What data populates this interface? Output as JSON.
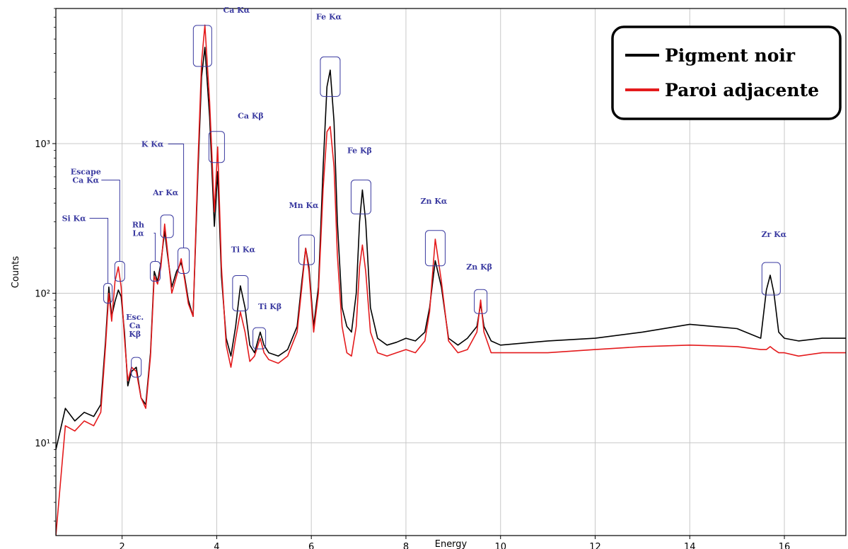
{
  "chart_data": {
    "type": "line",
    "title": "",
    "xlabel": "Energy",
    "ylabel": "Counts",
    "xlim": [
      0.6,
      17.3
    ],
    "ylim": [
      2.4,
      8000
    ],
    "y_scale": "log",
    "grid": true,
    "legend_position": "top-right",
    "x_ticks": [
      {
        "value": 2,
        "label": "2"
      },
      {
        "value": 4,
        "label": "4"
      },
      {
        "value": 6,
        "label": "6"
      },
      {
        "value": 8,
        "label": "8"
      },
      {
        "value": 10,
        "label": "10"
      },
      {
        "value": 12,
        "label": "12"
      },
      {
        "value": 14,
        "label": "14"
      },
      {
        "value": 16,
        "label": "16"
      }
    ],
    "y_ticks": [
      {
        "value": 10,
        "label": "10¹"
      },
      {
        "value": 100,
        "label": "10²"
      },
      {
        "value": 1000,
        "label": "10³"
      }
    ],
    "series": [
      {
        "name": "Pigment noir",
        "color": "#000000",
        "x": [
          0.6,
          0.8,
          1.0,
          1.2,
          1.4,
          1.55,
          1.65,
          1.72,
          1.78,
          1.85,
          1.92,
          1.98,
          2.05,
          2.12,
          2.2,
          2.3,
          2.4,
          2.5,
          2.6,
          2.68,
          2.75,
          2.82,
          2.9,
          2.96,
          3.05,
          3.15,
          3.25,
          3.32,
          3.4,
          3.5,
          3.6,
          3.68,
          3.75,
          3.85,
          3.95,
          4.02,
          4.1,
          4.2,
          4.3,
          4.4,
          4.5,
          4.6,
          4.7,
          4.8,
          4.92,
          5.0,
          5.1,
          5.3,
          5.5,
          5.7,
          5.8,
          5.88,
          5.95,
          6.05,
          6.15,
          6.25,
          6.33,
          6.4,
          6.48,
          6.55,
          6.65,
          6.75,
          6.85,
          6.95,
          7.02,
          7.08,
          7.15,
          7.25,
          7.4,
          7.6,
          7.8,
          8.0,
          8.2,
          8.4,
          8.5,
          8.62,
          8.75,
          8.9,
          9.1,
          9.3,
          9.5,
          9.58,
          9.65,
          9.8,
          10.0,
          11.0,
          12.0,
          13.0,
          14.0,
          15.0,
          15.5,
          15.62,
          15.7,
          15.78,
          15.88,
          16.0,
          16.3,
          16.8,
          17.3
        ],
        "y": [
          9,
          17,
          14,
          16,
          15,
          18,
          48,
          110,
          70,
          88,
          105,
          95,
          55,
          24,
          30,
          32,
          20,
          18,
          40,
          140,
          120,
          160,
          260,
          180,
          110,
          140,
          160,
          130,
          90,
          70,
          600,
          2800,
          4400,
          1500,
          280,
          650,
          130,
          50,
          38,
          60,
          112,
          80,
          45,
          40,
          55,
          45,
          40,
          38,
          42,
          60,
          120,
          200,
          150,
          60,
          110,
          700,
          2400,
          3100,
          1400,
          300,
          80,
          60,
          55,
          100,
          300,
          490,
          300,
          80,
          50,
          45,
          47,
          50,
          48,
          55,
          80,
          165,
          110,
          50,
          45,
          50,
          60,
          85,
          60,
          48,
          45,
          48,
          50,
          55,
          62,
          58,
          50,
          105,
          132,
          100,
          55,
          50,
          48,
          50,
          50
        ]
      },
      {
        "name": "Paroi adjacente",
        "color": "#e41a1c",
        "x": [
          0.6,
          0.8,
          1.0,
          1.2,
          1.4,
          1.55,
          1.65,
          1.72,
          1.78,
          1.85,
          1.92,
          1.98,
          2.05,
          2.12,
          2.2,
          2.3,
          2.4,
          2.5,
          2.6,
          2.68,
          2.75,
          2.82,
          2.9,
          2.96,
          3.05,
          3.15,
          3.25,
          3.32,
          3.4,
          3.5,
          3.6,
          3.68,
          3.75,
          3.85,
          3.95,
          4.02,
          4.1,
          4.2,
          4.3,
          4.4,
          4.5,
          4.6,
          4.7,
          4.8,
          4.92,
          5.0,
          5.1,
          5.3,
          5.5,
          5.7,
          5.8,
          5.88,
          5.95,
          6.05,
          6.15,
          6.25,
          6.33,
          6.4,
          6.48,
          6.55,
          6.65,
          6.75,
          6.85,
          6.95,
          7.02,
          7.08,
          7.15,
          7.25,
          7.4,
          7.6,
          7.8,
          8.0,
          8.2,
          8.4,
          8.5,
          8.62,
          8.75,
          8.9,
          9.1,
          9.3,
          9.5,
          9.58,
          9.65,
          9.8,
          10.0,
          11.0,
          12.0,
          13.0,
          14.0,
          15.0,
          15.5,
          15.62,
          15.7,
          15.78,
          15.88,
          16.0,
          16.3,
          16.8,
          17.3
        ],
        "y": [
          2.4,
          13,
          12,
          14,
          13,
          16,
          44,
          100,
          65,
          120,
          150,
          110,
          50,
          26,
          32,
          30,
          20,
          17,
          38,
          130,
          115,
          150,
          290,
          190,
          100,
          130,
          170,
          125,
          85,
          70,
          700,
          3500,
          6200,
          1900,
          350,
          950,
          150,
          45,
          32,
          50,
          75,
          55,
          35,
          38,
          50,
          40,
          36,
          34,
          38,
          55,
          110,
          200,
          140,
          55,
          100,
          500,
          1200,
          1300,
          700,
          180,
          60,
          40,
          38,
          60,
          150,
          210,
          140,
          55,
          40,
          38,
          40,
          42,
          40,
          48,
          75,
          230,
          120,
          48,
          40,
          42,
          55,
          90,
          55,
          40,
          40,
          40,
          42,
          44,
          45,
          44,
          42,
          42,
          44,
          42,
          40,
          40,
          38,
          40,
          40
        ]
      }
    ],
    "annotations": [
      {
        "lines": [
          "Si Kα"
        ]
      },
      {
        "lines": [
          "Escape",
          "Ca Kα"
        ]
      },
      {
        "lines": [
          "Esc.",
          "Ca",
          "Kβ"
        ]
      },
      {
        "lines": [
          "Rh",
          "Lα"
        ]
      },
      {
        "lines": [
          "Ar Kα"
        ]
      },
      {
        "lines": [
          "K Kα"
        ]
      },
      {
        "lines": [
          "Ca Kα"
        ]
      },
      {
        "lines": [
          "Ca Kβ"
        ]
      },
      {
        "lines": [
          "Ti Kα"
        ]
      },
      {
        "lines": [
          "Ti Kβ"
        ]
      },
      {
        "lines": [
          "Mn Kα"
        ]
      },
      {
        "lines": [
          "Fe Kα"
        ]
      },
      {
        "lines": [
          "Fe Kβ"
        ]
      },
      {
        "lines": [
          "Zn Kα"
        ]
      },
      {
        "lines": [
          "Zn Kβ"
        ]
      },
      {
        "lines": [
          "Zr Kα"
        ]
      }
    ]
  }
}
